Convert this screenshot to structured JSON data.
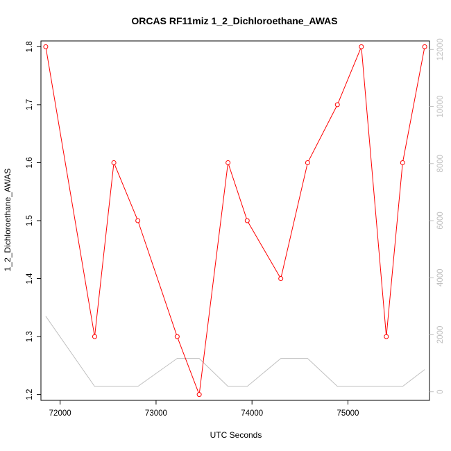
{
  "chart_data": {
    "type": "line",
    "title": "ORCAS RF11miz 1_2_Dichloroethane_AWAS",
    "xlabel": "UTC Seconds",
    "ylabel": "1_2_Dichloroethane_AWAS",
    "xlim": [
      71800,
      75850
    ],
    "ylim": [
      1.19,
      1.81
    ],
    "y2lim": [
      -300,
      12300
    ],
    "x_ticks": [
      72000,
      73000,
      74000,
      75000
    ],
    "x_tick_labels": [
      "72000",
      "73000",
      "74000",
      "75000"
    ],
    "y_ticks": [
      1.2,
      1.3,
      1.4,
      1.5,
      1.6,
      1.7,
      1.8
    ],
    "y_tick_labels": [
      "1.2",
      "1.3",
      "1.4",
      "1.5",
      "1.6",
      "1.7",
      "1.8"
    ],
    "y2_ticks": [
      0,
      2000,
      4000,
      6000,
      8000,
      10000,
      12000
    ],
    "y2_tick_labels": [
      "0",
      "2000",
      "4000",
      "6000",
      "8000",
      "10000",
      "12000"
    ],
    "grid": false,
    "series": [
      {
        "axis": "left",
        "color": "#ff0000",
        "markers": "open-circle",
        "x": [
          71850,
          72360,
          72560,
          72810,
          73220,
          73450,
          73750,
          73950,
          74300,
          74580,
          74890,
          75140,
          75400,
          75570,
          75800
        ],
        "values": [
          1.8,
          1.3,
          1.6,
          1.5,
          1.3,
          1.2,
          1.6,
          1.5,
          1.4,
          1.6,
          1.7,
          1.8,
          1.3,
          1.6,
          1.8
        ]
      },
      {
        "axis": "right",
        "color": "#c0c0c0",
        "markers": "none",
        "x": [
          71850,
          72360,
          72810,
          73220,
          73450,
          73750,
          73950,
          74300,
          74580,
          74890,
          75400,
          75570,
          75800
        ],
        "values": [
          2650,
          190,
          190,
          1170,
          1170,
          190,
          190,
          1170,
          1170,
          190,
          190,
          190,
          780
        ]
      }
    ]
  }
}
